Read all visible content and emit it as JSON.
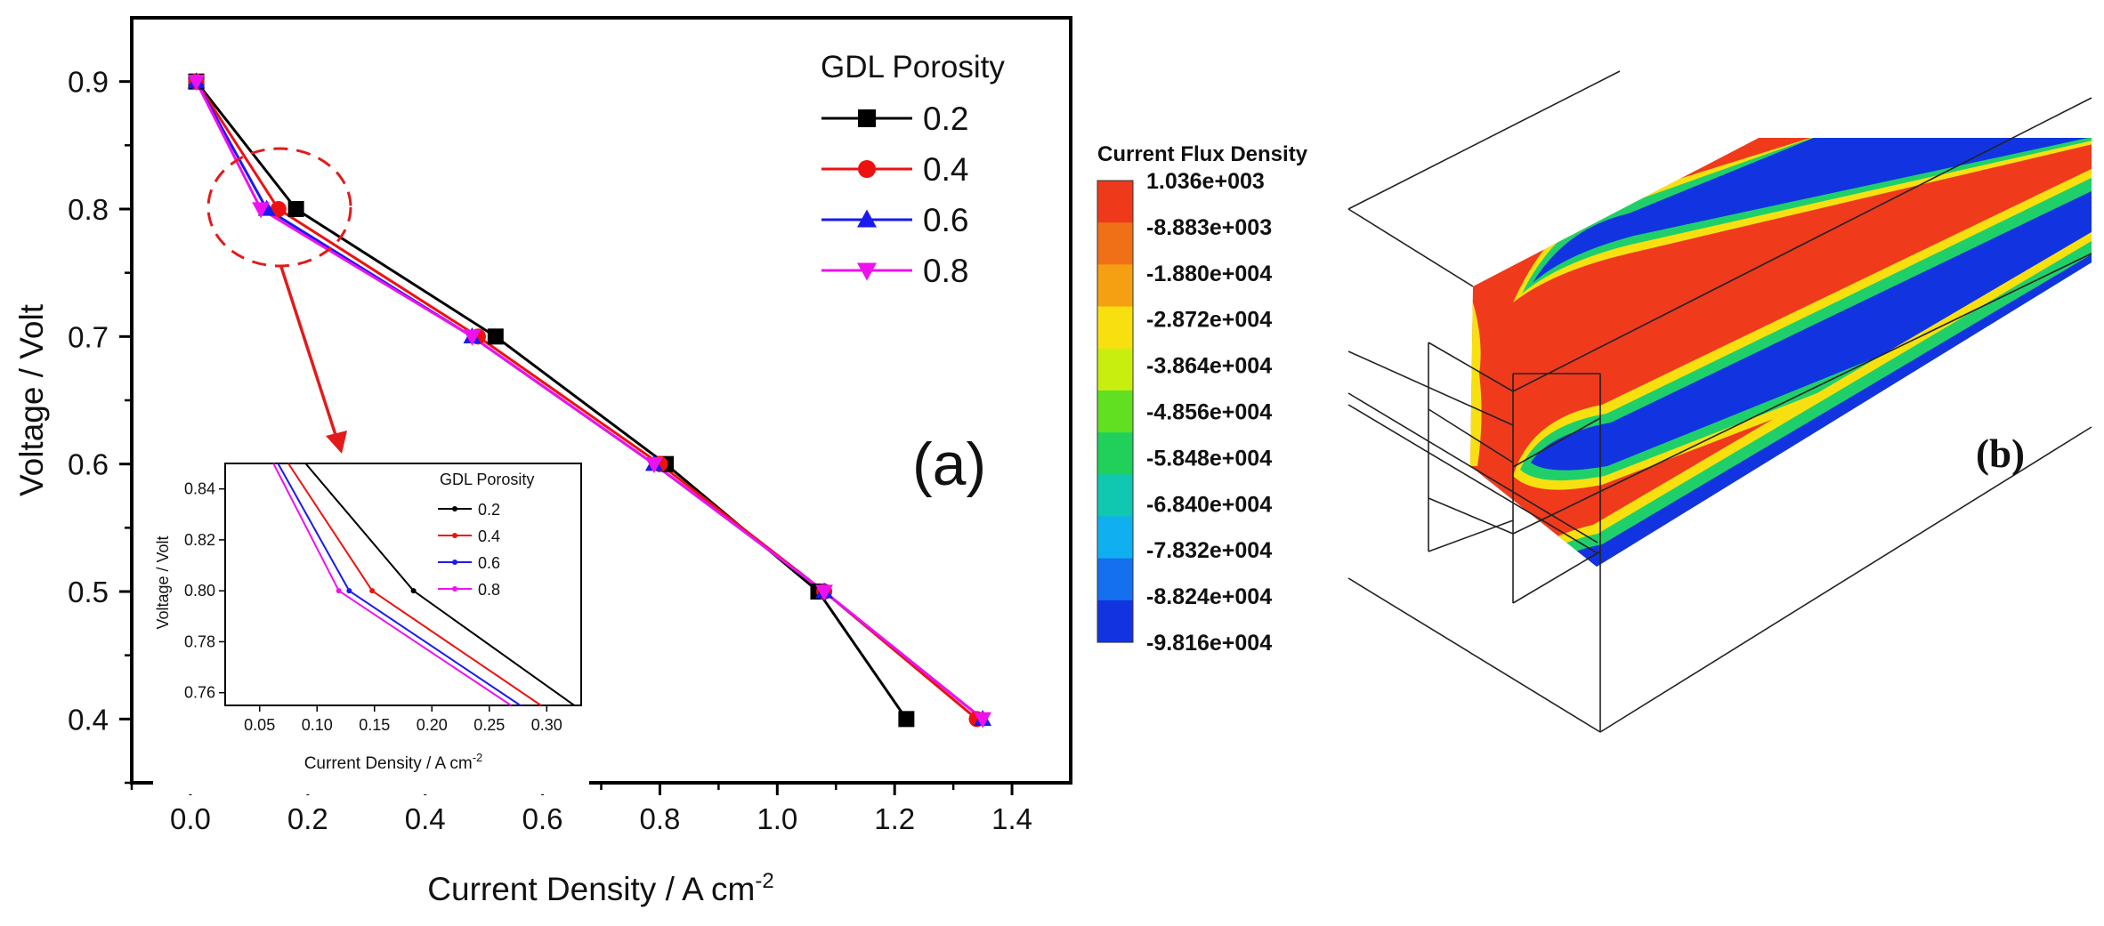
{
  "panel_a_label": "(a)",
  "panel_b_label": "(b)",
  "chart_data": [
    {
      "type": "line",
      "xlabel": "Current Density / A cm",
      "xlabel_sup": "-2",
      "ylabel": "Voltage / Volt",
      "xlim": [
        -0.1,
        1.5
      ],
      "ylim": [
        0.35,
        0.95
      ],
      "xticks": [
        "0.0",
        "0.2",
        "0.4",
        "0.6",
        "0.8",
        "1.0",
        "1.2",
        "1.4"
      ],
      "yticks": [
        "0.4",
        "0.5",
        "0.6",
        "0.7",
        "0.8",
        "0.9"
      ],
      "legend": {
        "title": "GDL Porosity",
        "placement": "top-right"
      },
      "series": [
        {
          "name": "0.2",
          "color": "#000000",
          "marker": "square",
          "x": [
            0.01,
            0.18,
            0.52,
            0.81,
            1.07,
            1.22
          ],
          "y": [
            0.9,
            0.8,
            0.7,
            0.6,
            0.5,
            0.4
          ]
        },
        {
          "name": "0.4",
          "color": "#ee1111",
          "marker": "circle",
          "x": [
            0.01,
            0.15,
            0.49,
            0.8,
            1.08,
            1.34
          ],
          "y": [
            0.9,
            0.8,
            0.7,
            0.6,
            0.5,
            0.4
          ]
        },
        {
          "name": "0.6",
          "color": "#1a1aee",
          "marker": "triangle-up",
          "x": [
            0.01,
            0.13,
            0.48,
            0.79,
            1.08,
            1.35
          ],
          "y": [
            0.9,
            0.8,
            0.7,
            0.6,
            0.5,
            0.4
          ]
        },
        {
          "name": "0.8",
          "color": "#ee11ee",
          "marker": "triangle-down",
          "x": [
            0.01,
            0.12,
            0.48,
            0.79,
            1.08,
            1.35
          ],
          "y": [
            0.9,
            0.8,
            0.7,
            0.6,
            0.5,
            0.4
          ]
        }
      ]
    },
    {
      "type": "line",
      "role": "inset",
      "xlabel": "Current Density / A cm",
      "xlabel_sup": "-2",
      "ylabel": "Voltage / Volt",
      "xlim": [
        0.02,
        0.33
      ],
      "ylim": [
        0.755,
        0.85
      ],
      "xticks": [
        "0.05",
        "0.10",
        "0.15",
        "0.20",
        "0.25",
        "0.30"
      ],
      "yticks": [
        "0.76",
        "0.78",
        "0.80",
        "0.82",
        "0.84"
      ],
      "legend": {
        "title": "GDL Porosity",
        "placement": "top-right"
      },
      "series": [
        {
          "name": "0.2",
          "color": "#000000",
          "x": [
            0.09,
            0.184,
            0.324
          ],
          "y": [
            0.85,
            0.8,
            0.755
          ]
        },
        {
          "name": "0.4",
          "color": "#ee1111",
          "x": [
            0.075,
            0.148,
            0.295
          ],
          "y": [
            0.85,
            0.8,
            0.755
          ]
        },
        {
          "name": "0.6",
          "color": "#1a1aee",
          "x": [
            0.066,
            0.128,
            0.277
          ],
          "y": [
            0.85,
            0.8,
            0.755
          ]
        },
        {
          "name": "0.8",
          "color": "#ee11ee",
          "x": [
            0.062,
            0.119,
            0.269
          ],
          "y": [
            0.85,
            0.8,
            0.755
          ]
        }
      ]
    }
  ],
  "colorbar": {
    "title": "Current Flux Density",
    "labels": [
      "1.036e+003",
      "-8.883e+003",
      "-1.880e+004",
      "-2.872e+004",
      "-3.864e+004",
      "-4.856e+004",
      "-5.848e+004",
      "-6.840e+004",
      "-7.832e+004",
      "-8.824e+004",
      "-9.816e+004"
    ],
    "colors": [
      "#ee3a1a",
      "#f07018",
      "#f5a012",
      "#f8e010",
      "#c8ee10",
      "#60e020",
      "#20d05a",
      "#10c8b0",
      "#10b0f0",
      "#1470ee",
      "#1234e0"
    ]
  }
}
